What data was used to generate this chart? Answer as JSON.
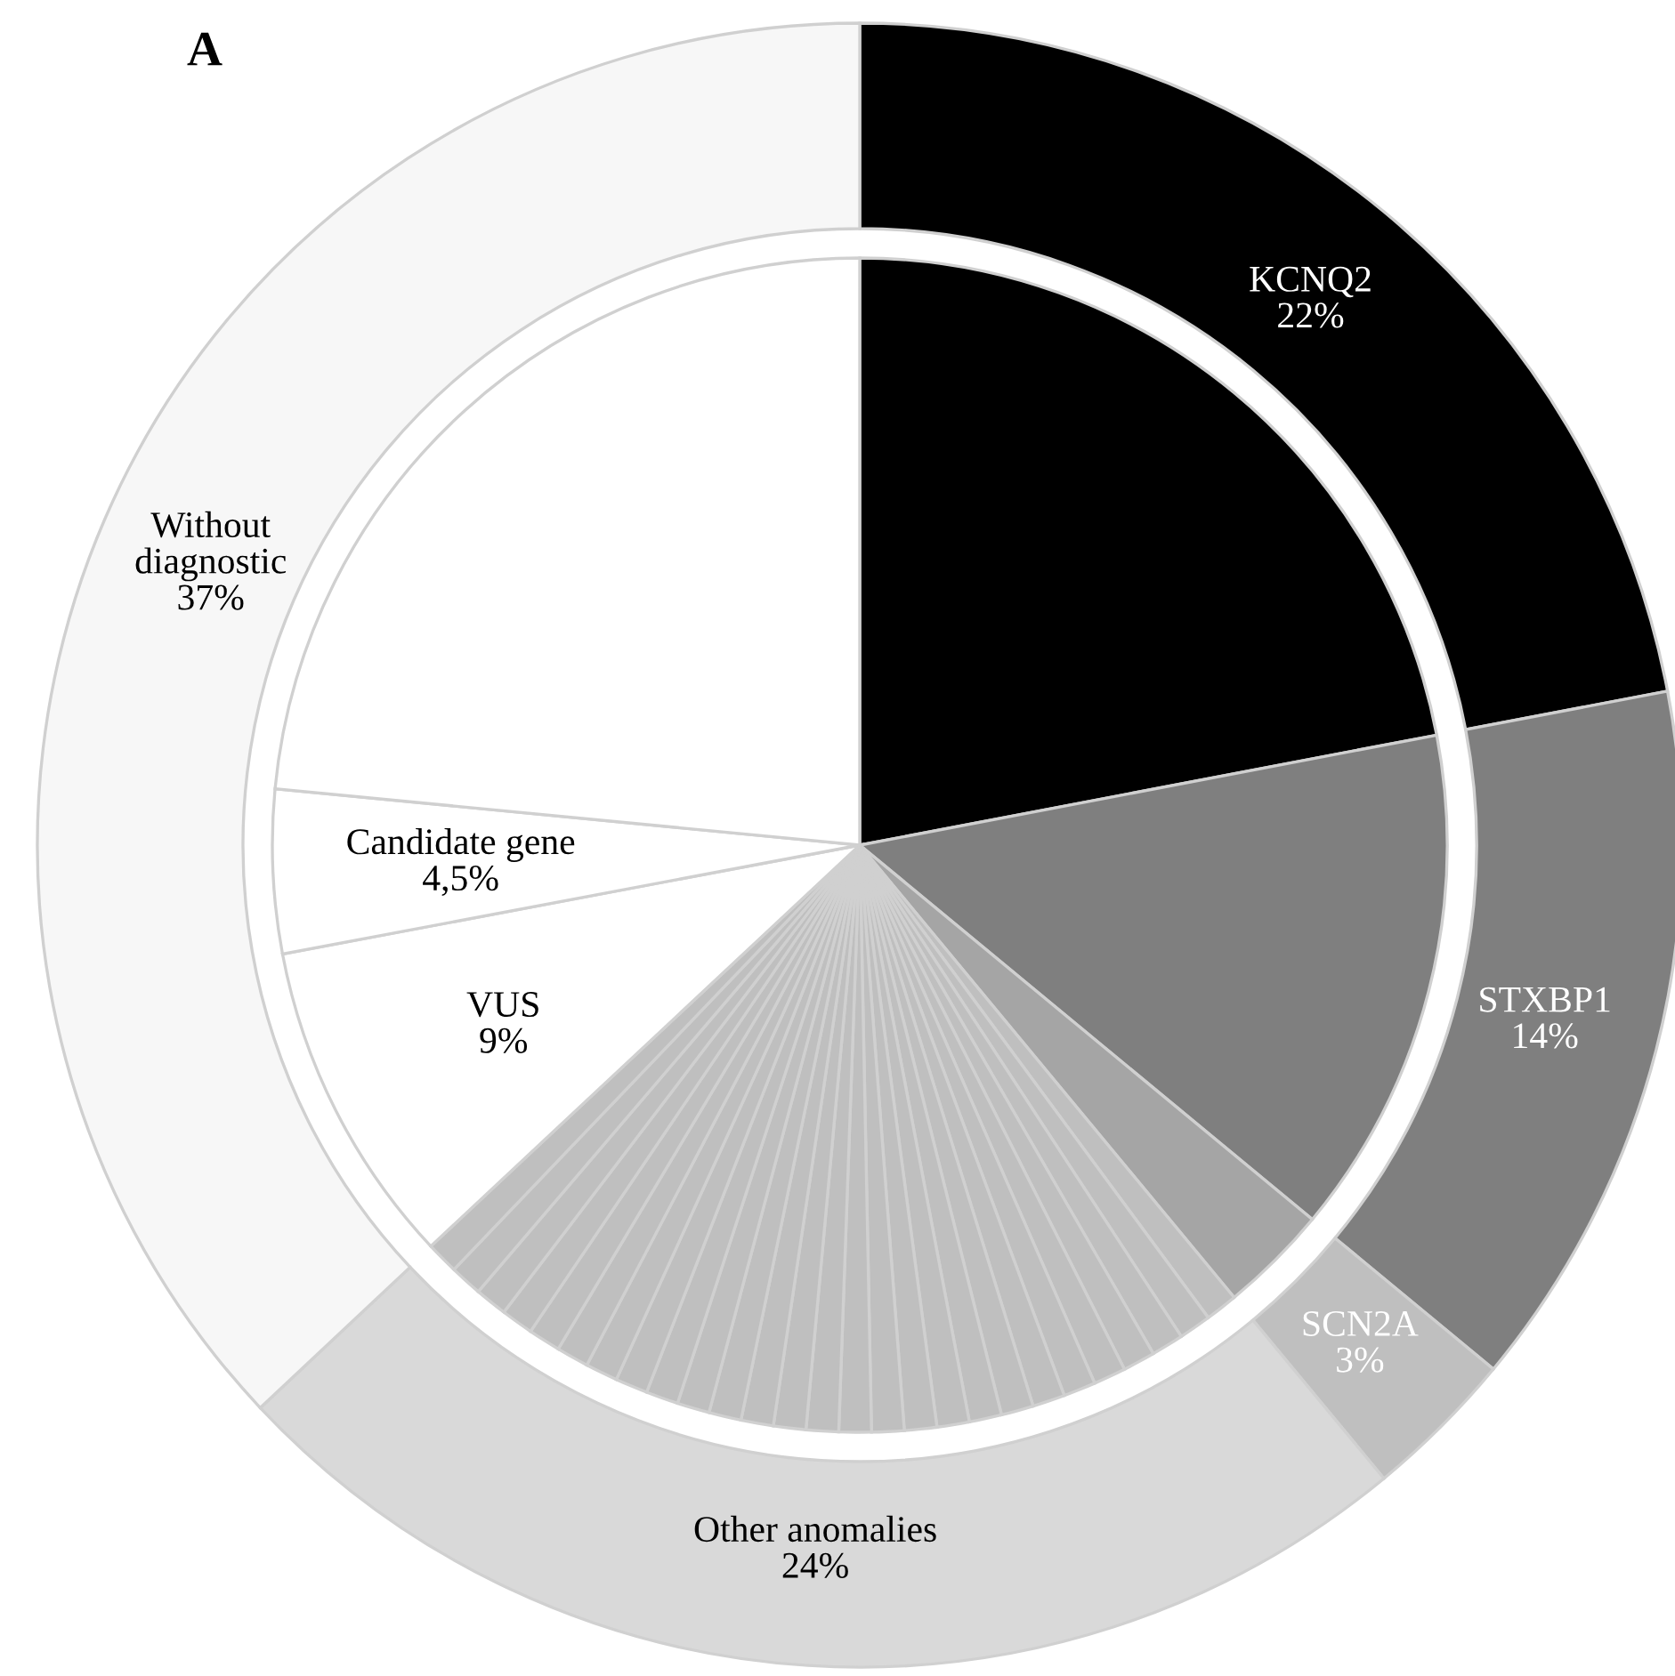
{
  "chart_data": {
    "type": "donut",
    "title": "A",
    "series": [
      {
        "values": [
          22,
          14,
          3,
          24,
          37
        ],
        "value_labels": [
          "KCNQ2\n22%",
          "STXBP1\n14%",
          "SCN2A\n3%",
          "Other anomalies\n24%",
          "Without\ndiagnostic\n37%"
        ],
        "colors": [
          "#000000",
          "#7f7f7f",
          "#bfbfbf",
          "#d9d9d9",
          "#f7f7f7"
        ]
      },
      {
        "type": "pie",
        "values": [
          22,
          14,
          3,
          0.89,
          0.89,
          0.89,
          0.89,
          0.89,
          0.89,
          0.89,
          0.89,
          0.89,
          0.89,
          0.89,
          0.89,
          0.89,
          0.89,
          0.89,
          0.89,
          0.89,
          0.89,
          0.89,
          0.89,
          0.89,
          0.89,
          0.89,
          0.89,
          0.89,
          0.89,
          0.89,
          9,
          4.5,
          23.47
        ],
        "value_labels": [
          null,
          null,
          null,
          null,
          null,
          null,
          null,
          null,
          null,
          null,
          null,
          null,
          null,
          null,
          null,
          null,
          null,
          null,
          null,
          null,
          null,
          null,
          null,
          null,
          null,
          null,
          null,
          null,
          null,
          null,
          "VUS\n9%",
          "Candidate gene\n4,5%",
          null
        ],
        "colors": [
          "#000000",
          "#7f7f7f",
          "#a5a5a5",
          "#bfbfbf",
          "#bfbfbf",
          "#bfbfbf",
          "#bfbfbf",
          "#bfbfbf",
          "#bfbfbf",
          "#bfbfbf",
          "#bfbfbf",
          "#bfbfbf",
          "#bfbfbf",
          "#bfbfbf",
          "#bfbfbf",
          "#bfbfbf",
          "#bfbfbf",
          "#bfbfbf",
          "#bfbfbf",
          "#bfbfbf",
          "#bfbfbf",
          "#bfbfbf",
          "#bfbfbf",
          "#bfbfbf",
          "#bfbfbf",
          "#bfbfbf",
          "#bfbfbf",
          "#bfbfbf",
          "#bfbfbf",
          "#bfbfbf",
          "#ffffff",
          "#ffffff",
          "#ffffff"
        ]
      }
    ]
  }
}
